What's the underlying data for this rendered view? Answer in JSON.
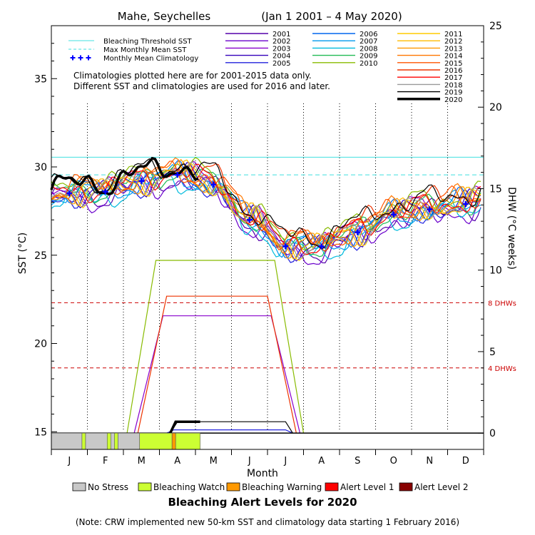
{
  "chart_data": {
    "type": "line",
    "title_location": "Mahe, Seychelles",
    "title_range": "(Jan 1 2001 – 4 May 2020)",
    "ylabel_left": "SST (°C)",
    "ylabel_right": "DHW (°C weeks)",
    "xlabel": "Month",
    "ylim_left": [
      14,
      38
    ],
    "ylim_right": [
      -1,
      25
    ],
    "yticks_left": [
      "15",
      "20",
      "25",
      "30",
      "35"
    ],
    "yticks_right": [
      "0",
      "5",
      "10",
      "15",
      "20",
      "25"
    ],
    "months": [
      "J",
      "F",
      "M",
      "A",
      "M",
      "J",
      "J",
      "A",
      "S",
      "O",
      "N",
      "D"
    ],
    "bleaching_threshold_sst": 30.55,
    "max_monthly_mean_sst": 29.55,
    "dhw_levels": [
      {
        "label": "8 DHWs",
        "value": 8
      },
      {
        "label": "4 DHWs",
        "value": 4
      }
    ],
    "legend_reference": [
      {
        "label": "Bleaching Threshold SST",
        "color": "#40e0e0",
        "style": "solid"
      },
      {
        "label": "Max Monthly Mean SST",
        "color": "#40e0e0",
        "style": "dashed"
      },
      {
        "label": "Monthly Mean Climatology",
        "color": "#0000ff",
        "style": "plus"
      }
    ],
    "notes": [
      "Climatologies plotted here are for 2001-2015 data only.",
      "Different SST and climatologies are used for 2016 and later."
    ],
    "climatology": {
      "x": [
        0.5,
        1.5,
        2.5,
        3.5,
        4.5,
        5.5,
        6.5,
        7.5,
        8.5,
        9.5,
        10.5,
        11.5
      ],
      "y": [
        28.5,
        28.6,
        29.2,
        29.55,
        29.0,
        27.0,
        25.5,
        25.5,
        26.3,
        27.3,
        27.6,
        27.9
      ]
    },
    "series": [
      {
        "name": "2001",
        "color": "#5500aa",
        "width": 1.2,
        "offset": -0.2,
        "phase": 0.3,
        "dhw": 0
      },
      {
        "name": "2002",
        "color": "#6a00cc",
        "width": 1.2,
        "offset": -0.4,
        "phase": 1.1,
        "dhw": 0
      },
      {
        "name": "2003",
        "color": "#8800cc",
        "width": 1.2,
        "offset": 0.2,
        "phase": 2.0,
        "dhw": 7.2,
        "dhw_start": 2.3,
        "dhw_end": 6.9
      },
      {
        "name": "2004",
        "color": "#3300bb",
        "width": 1.2,
        "offset": 0.0,
        "phase": 2.7,
        "dhw": 0
      },
      {
        "name": "2005",
        "color": "#2222dd",
        "width": 1.2,
        "offset": -0.1,
        "phase": 3.4,
        "dhw": 0.2,
        "dhw_start": 3.2,
        "dhw_end": 6.7
      },
      {
        "name": "2006",
        "color": "#0066ee",
        "width": 1.2,
        "offset": 0.1,
        "phase": 4.1,
        "dhw": 0
      },
      {
        "name": "2007",
        "color": "#0099ee",
        "width": 1.2,
        "offset": 0.0,
        "phase": 4.9,
        "dhw": 0
      },
      {
        "name": "2008",
        "color": "#00bbdd",
        "width": 1.2,
        "offset": -0.3,
        "phase": 5.6,
        "dhw": 0
      },
      {
        "name": "2009",
        "color": "#22bb55",
        "width": 1.2,
        "offset": 0.1,
        "phase": 0.8,
        "dhw": 0
      },
      {
        "name": "2010",
        "color": "#88bb00",
        "width": 1.2,
        "offset": 0.5,
        "phase": 1.6,
        "dhw": 10.6,
        "dhw_start": 2.1,
        "dhw_end": 7.0
      },
      {
        "name": "2011",
        "color": "#ffcc00",
        "width": 1.2,
        "offset": 0.0,
        "phase": 2.4,
        "dhw": 0
      },
      {
        "name": "2012",
        "color": "#ffbb00",
        "width": 1.2,
        "offset": 0.1,
        "phase": 3.0,
        "dhw": 0
      },
      {
        "name": "2013",
        "color": "#ff9900",
        "width": 1.2,
        "offset": 0.1,
        "phase": 3.8,
        "dhw": 0
      },
      {
        "name": "2014",
        "color": "#ff7700",
        "width": 1.2,
        "offset": 0.3,
        "phase": 4.5,
        "dhw": 0
      },
      {
        "name": "2015",
        "color": "#ff5500",
        "width": 1.2,
        "offset": 0.3,
        "phase": 5.2,
        "dhw": 0
      },
      {
        "name": "2016",
        "color": "#ee3300",
        "width": 1.2,
        "offset": 0.5,
        "phase": 0.1,
        "dhw": 8.4,
        "dhw_start": 2.4,
        "dhw_end": 6.8
      },
      {
        "name": "2017",
        "color": "#ff0000",
        "width": 1.2,
        "offset": 0.2,
        "phase": 1.4,
        "dhw": 0
      },
      {
        "name": "2018",
        "color": "#999999",
        "width": 1.2,
        "offset": 0.1,
        "phase": 2.2,
        "dhw": 0
      },
      {
        "name": "2019",
        "color": "#000000",
        "width": 1.2,
        "offset": 0.6,
        "phase": 0.5,
        "dhw": 0.7,
        "dhw_start": 3.3,
        "dhw_end": 6.7
      },
      {
        "name": "2020",
        "color": "#000000",
        "width": 3.5,
        "offset": 0.5,
        "phase": 0.0,
        "dhw": 0.7,
        "dhw_start": 3.3,
        "dhw_end": 3.75,
        "partial_end": 4.13
      }
    ],
    "alert_levels": {
      "title": "Bleaching Alert Levels for 2020",
      "legend": [
        {
          "label": "No Stress",
          "color": "#c8c8c8"
        },
        {
          "label": "Bleaching Watch",
          "color": "#ccff33"
        },
        {
          "label": "Bleaching Warning",
          "color": "#ff9900"
        },
        {
          "label": "Alert Level 1",
          "color": "#ff0000"
        },
        {
          "label": "Alert Level 2",
          "color": "#880000"
        }
      ],
      "segments": [
        {
          "from": 0.0,
          "to": 0.85,
          "level": "No Stress"
        },
        {
          "from": 0.85,
          "to": 0.95,
          "level": "Bleaching Watch"
        },
        {
          "from": 0.95,
          "to": 1.55,
          "level": "No Stress"
        },
        {
          "from": 1.55,
          "to": 1.65,
          "level": "Bleaching Watch"
        },
        {
          "from": 1.65,
          "to": 1.75,
          "level": "No Stress"
        },
        {
          "from": 1.75,
          "to": 1.85,
          "level": "Bleaching Watch"
        },
        {
          "from": 1.85,
          "to": 2.45,
          "level": "No Stress"
        },
        {
          "from": 2.45,
          "to": 3.35,
          "level": "Bleaching Watch"
        },
        {
          "from": 3.35,
          "to": 3.45,
          "level": "Bleaching Warning"
        },
        {
          "from": 3.45,
          "to": 4.13,
          "level": "Bleaching Watch"
        }
      ]
    },
    "footnote": "(Note: CRW implemented new 50-km SST and climatology data starting 1 February 2016)"
  }
}
